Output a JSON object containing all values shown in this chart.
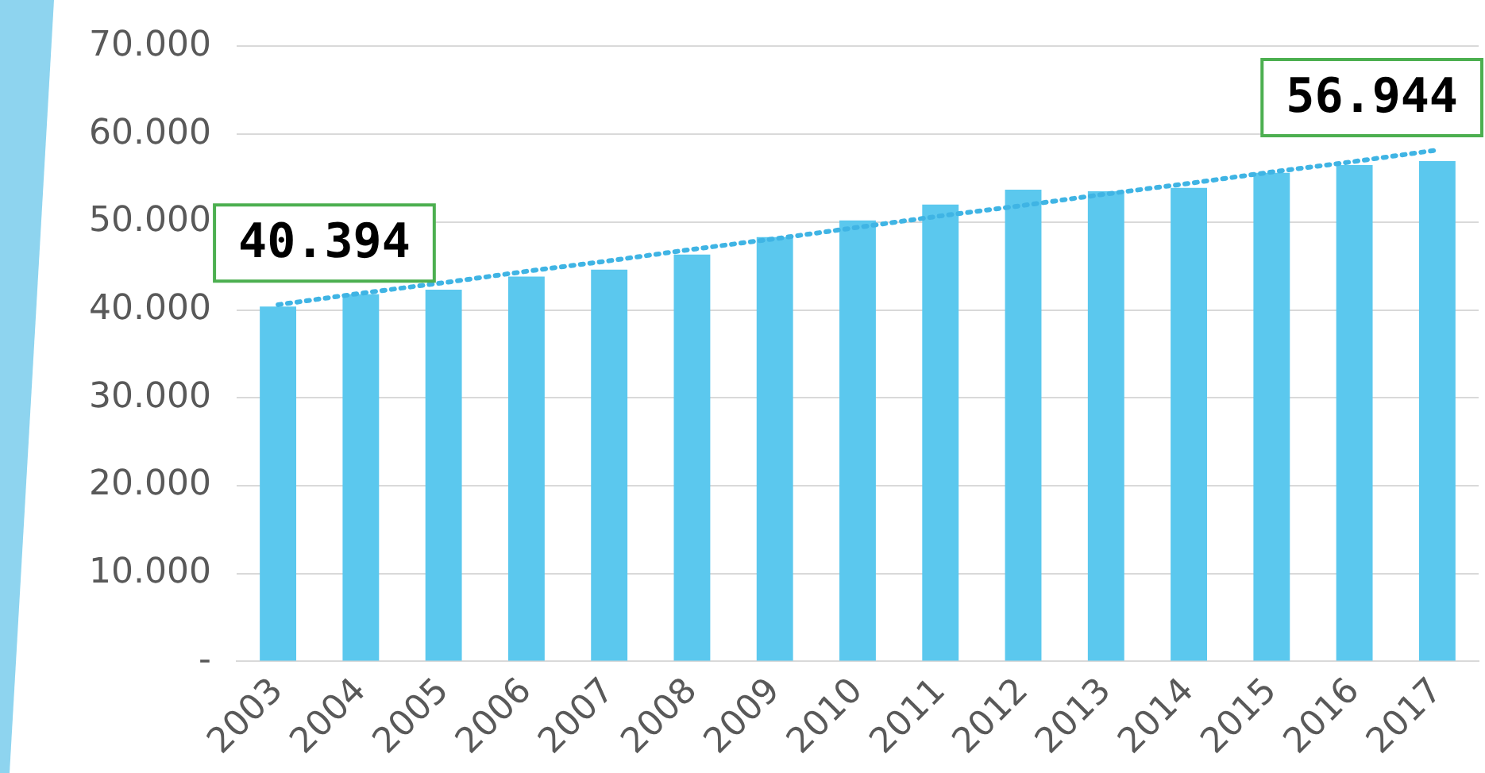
{
  "chart_data": {
    "type": "bar",
    "categories": [
      "2003",
      "2004",
      "2005",
      "2006",
      "2007",
      "2008",
      "2009",
      "2010",
      "2011",
      "2012",
      "2013",
      "2014",
      "2015",
      "2016",
      "2017"
    ],
    "series": [
      {
        "color": "#5bc8ee",
        "values": [
          40394,
          41800,
          42300,
          43800,
          44600,
          46300,
          48300,
          50200,
          52000,
          53700,
          53500,
          53900,
          55600,
          56500,
          56944
        ]
      },
      {
        "type": "line",
        "color": "#3fb4e4",
        "line_style": "dotted",
        "values": [
          40600,
          41900,
          43100,
          44400,
          45600,
          46900,
          48100,
          49400,
          50700,
          51900,
          53200,
          54400,
          55700,
          56900,
          58200
        ]
      }
    ],
    "ylim": [
      0,
      70000
    ],
    "yticks": [
      {
        "value": 0,
        "label": "-"
      },
      {
        "value": 10000,
        "label": "10.000"
      },
      {
        "value": 20000,
        "label": "20.000"
      },
      {
        "value": 30000,
        "label": "30.000"
      },
      {
        "value": 40000,
        "label": "40.000"
      },
      {
        "value": 50000,
        "label": "50.000"
      },
      {
        "value": 60000,
        "label": "60.000"
      },
      {
        "value": 70000,
        "label": "70.000"
      }
    ],
    "grid": "y",
    "legend": false,
    "annotations": [
      {
        "text": "40.394",
        "x": "2003",
        "y": 40394
      },
      {
        "text": "56.944",
        "x": "2017",
        "y": 56944
      }
    ]
  }
}
